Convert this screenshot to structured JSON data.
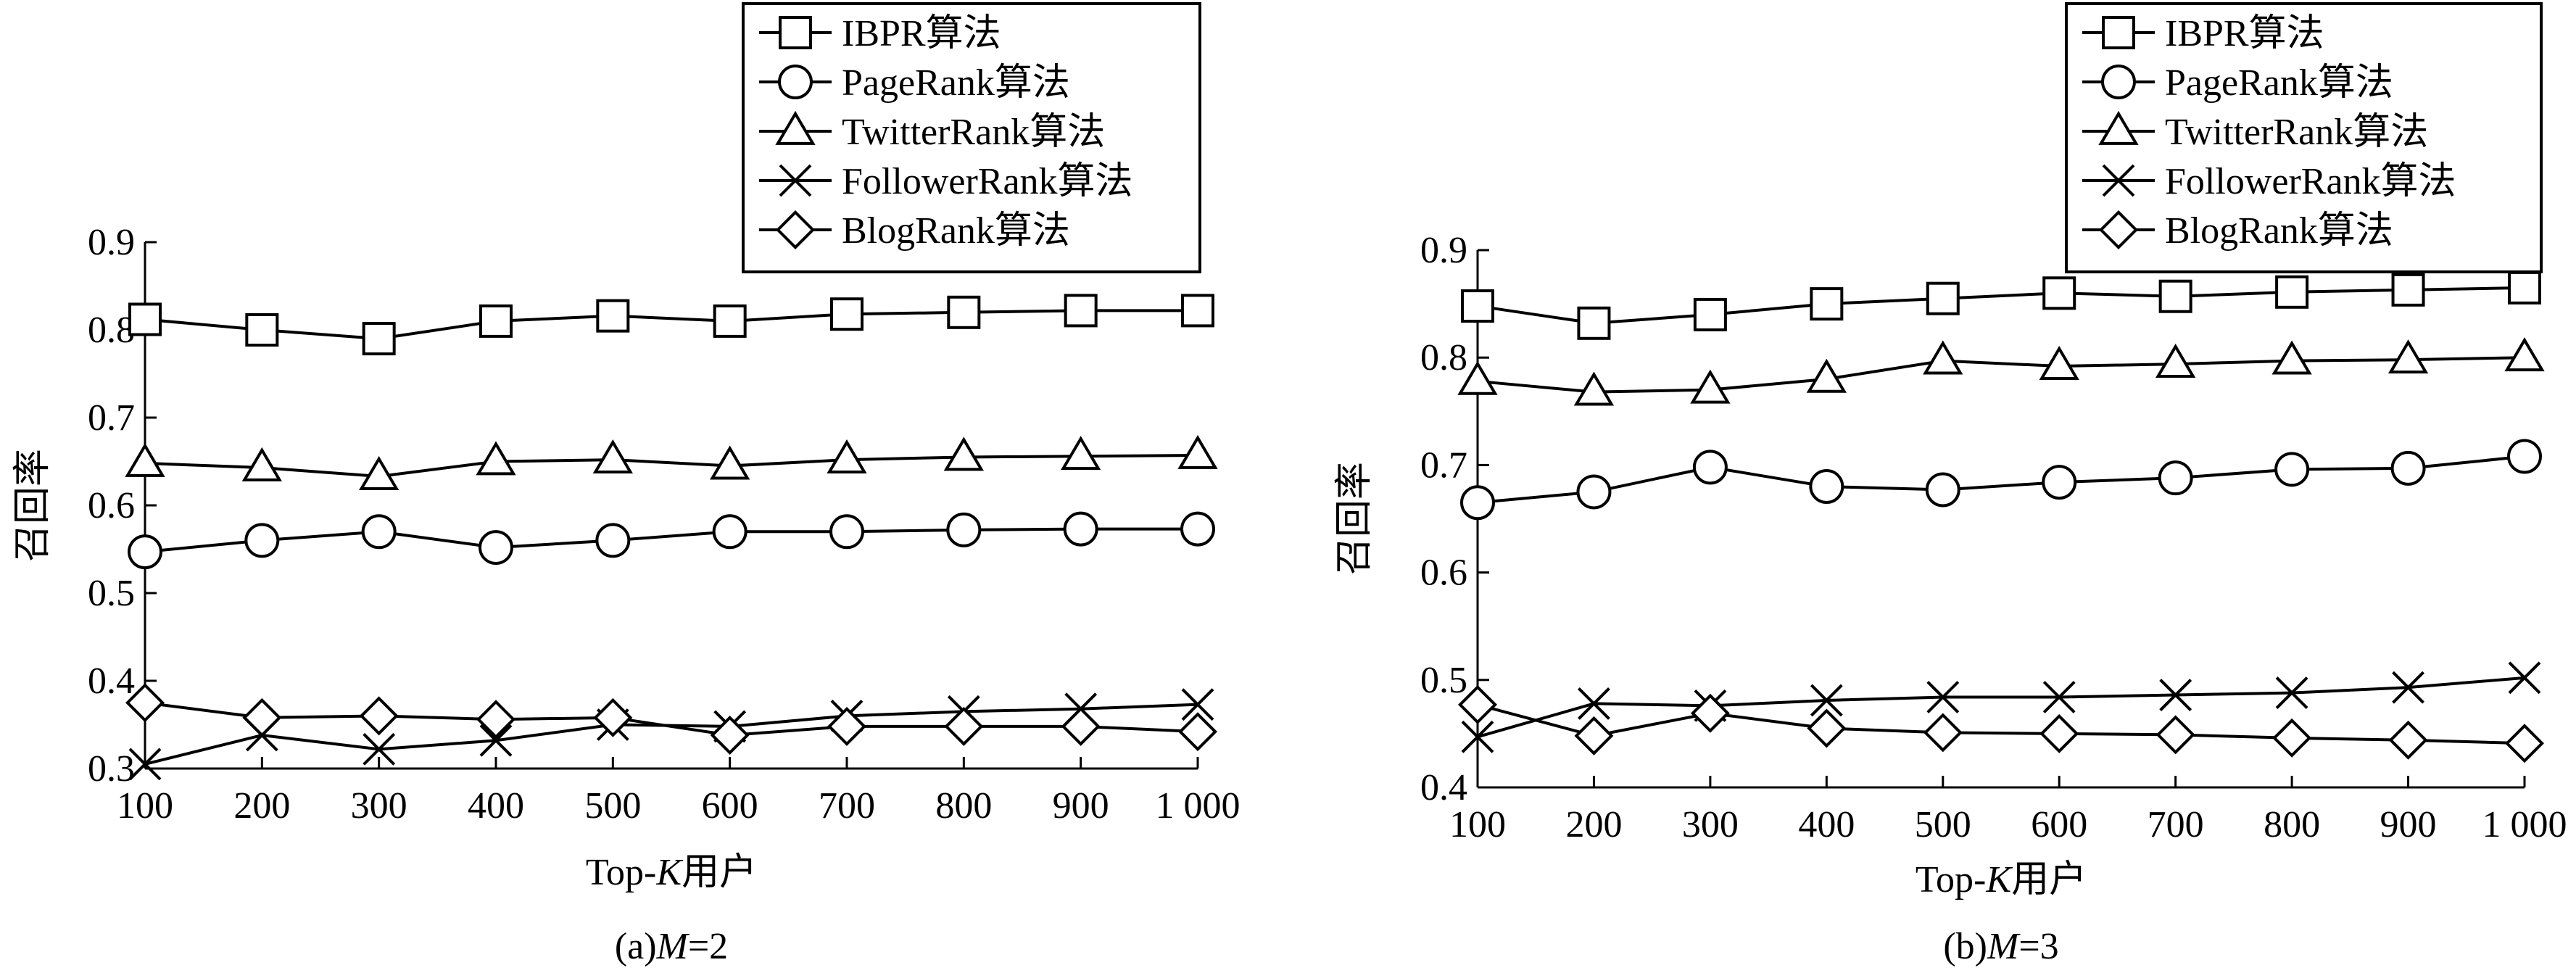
{
  "chart_data": [
    {
      "type": "line",
      "caption": {
        "prefix": "(a)",
        "var": "M",
        "value": "=2"
      },
      "xlabel": {
        "text": "Top-",
        "var": "K",
        "suffix": "用户"
      },
      "ylabel": "召回率",
      "x": [
        100,
        200,
        300,
        400,
        500,
        600,
        700,
        800,
        900,
        1000
      ],
      "x_tick_labels": [
        "100",
        "200",
        "300",
        "400",
        "500",
        "600",
        "700",
        "800",
        "900",
        "1 000"
      ],
      "ylim": [
        0.3,
        0.9
      ],
      "y_ticks": [
        0.3,
        0.4,
        0.5,
        0.6,
        0.7,
        0.8,
        0.9
      ],
      "y_tick_labels": [
        "0.3",
        "0.4",
        "0.5",
        "0.6",
        "0.7",
        "0.8",
        "0.9"
      ],
      "grid": false,
      "legend_position": "top-right",
      "series": [
        {
          "name": "IBPR算法",
          "marker": "square",
          "values": [
            0.812,
            0.8,
            0.79,
            0.81,
            0.816,
            0.81,
            0.818,
            0.82,
            0.822,
            0.822
          ]
        },
        {
          "name": "PageRank算法",
          "marker": "circle",
          "values": [
            0.547,
            0.56,
            0.57,
            0.552,
            0.56,
            0.57,
            0.57,
            0.572,
            0.573,
            0.573
          ]
        },
        {
          "name": "TwitterRank算法",
          "marker": "triangle",
          "values": [
            0.648,
            0.643,
            0.633,
            0.65,
            0.652,
            0.645,
            0.652,
            0.655,
            0.656,
            0.657
          ]
        },
        {
          "name": "FollowerRank算法",
          "marker": "cross",
          "values": [
            0.305,
            0.338,
            0.322,
            0.332,
            0.35,
            0.348,
            0.36,
            0.365,
            0.368,
            0.373
          ]
        },
        {
          "name": "BlogRank算法",
          "marker": "diamond",
          "values": [
            0.375,
            0.358,
            0.36,
            0.356,
            0.358,
            0.338,
            0.348,
            0.348,
            0.348,
            0.342
          ]
        }
      ]
    },
    {
      "type": "line",
      "caption": {
        "prefix": "(b)",
        "var": "M",
        "value": "=3"
      },
      "xlabel": {
        "text": "Top-",
        "var": "K",
        "suffix": "用户"
      },
      "ylabel": "召回率",
      "x": [
        100,
        200,
        300,
        400,
        500,
        600,
        700,
        800,
        900,
        1000
      ],
      "x_tick_labels": [
        "100",
        "200",
        "300",
        "400",
        "500",
        "600",
        "700",
        "800",
        "900",
        "1 000"
      ],
      "ylim": [
        0.4,
        0.9
      ],
      "y_ticks": [
        0.4,
        0.5,
        0.6,
        0.7,
        0.8,
        0.9
      ],
      "y_tick_labels": [
        "0.4",
        "0.5",
        "0.6",
        "0.7",
        "0.8",
        "0.9"
      ],
      "grid": false,
      "legend_position": "top-right",
      "series": [
        {
          "name": "IBPR算法",
          "marker": "square",
          "values": [
            0.848,
            0.832,
            0.84,
            0.85,
            0.855,
            0.86,
            0.857,
            0.861,
            0.863,
            0.865
          ]
        },
        {
          "name": "PageRank算法",
          "marker": "circle",
          "values": [
            0.665,
            0.675,
            0.698,
            0.68,
            0.677,
            0.684,
            0.688,
            0.696,
            0.697,
            0.708
          ]
        },
        {
          "name": "TwitterRank算法",
          "marker": "triangle",
          "values": [
            0.778,
            0.768,
            0.77,
            0.78,
            0.797,
            0.792,
            0.794,
            0.797,
            0.798,
            0.8
          ]
        },
        {
          "name": "FollowerRank算法",
          "marker": "cross",
          "values": [
            0.447,
            0.478,
            0.476,
            0.481,
            0.484,
            0.484,
            0.486,
            0.488,
            0.493,
            0.502
          ]
        },
        {
          "name": "BlogRank算法",
          "marker": "diamond",
          "values": [
            0.477,
            0.448,
            0.469,
            0.455,
            0.451,
            0.45,
            0.449,
            0.446,
            0.444,
            0.441
          ]
        }
      ]
    }
  ]
}
